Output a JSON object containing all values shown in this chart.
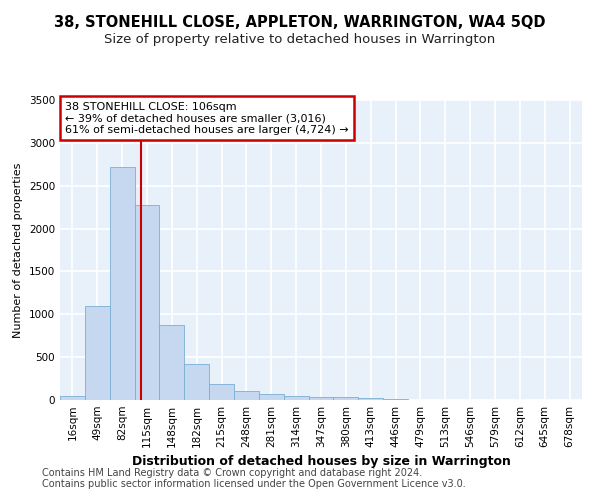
{
  "title": "38, STONEHILL CLOSE, APPLETON, WARRINGTON, WA4 5QD",
  "subtitle": "Size of property relative to detached houses in Warrington",
  "xlabel": "Distribution of detached houses by size in Warrington",
  "ylabel": "Number of detached properties",
  "bin_labels": [
    "16sqm",
    "49sqm",
    "82sqm",
    "115sqm",
    "148sqm",
    "182sqm",
    "215sqm",
    "248sqm",
    "281sqm",
    "314sqm",
    "347sqm",
    "380sqm",
    "413sqm",
    "446sqm",
    "479sqm",
    "513sqm",
    "546sqm",
    "579sqm",
    "612sqm",
    "645sqm",
    "678sqm"
  ],
  "bar_values": [
    50,
    1100,
    2720,
    2280,
    880,
    420,
    190,
    100,
    70,
    45,
    40,
    30,
    25,
    15,
    5,
    5,
    3,
    3,
    3,
    3,
    3
  ],
  "bar_color": "#c5d8f0",
  "bar_edge_color": "#7aafd4",
  "bg_color": "#e8f0fa",
  "grid_color": "#ffffff",
  "property_line_color": "#cc0000",
  "annotation_text": "38 STONEHILL CLOSE: 106sqm\n← 39% of detached houses are smaller (3,016)\n61% of semi-detached houses are larger (4,724) →",
  "annotation_box_color": "#ffffff",
  "annotation_border_color": "#cc0000",
  "footer_line1": "Contains HM Land Registry data © Crown copyright and database right 2024.",
  "footer_line2": "Contains public sector information licensed under the Open Government Licence v3.0.",
  "ylim": [
    0,
    3500
  ],
  "title_fontsize": 10.5,
  "subtitle_fontsize": 9.5,
  "xlabel_fontsize": 9,
  "ylabel_fontsize": 8,
  "tick_fontsize": 7.5,
  "annotation_fontsize": 8,
  "footer_fontsize": 7
}
